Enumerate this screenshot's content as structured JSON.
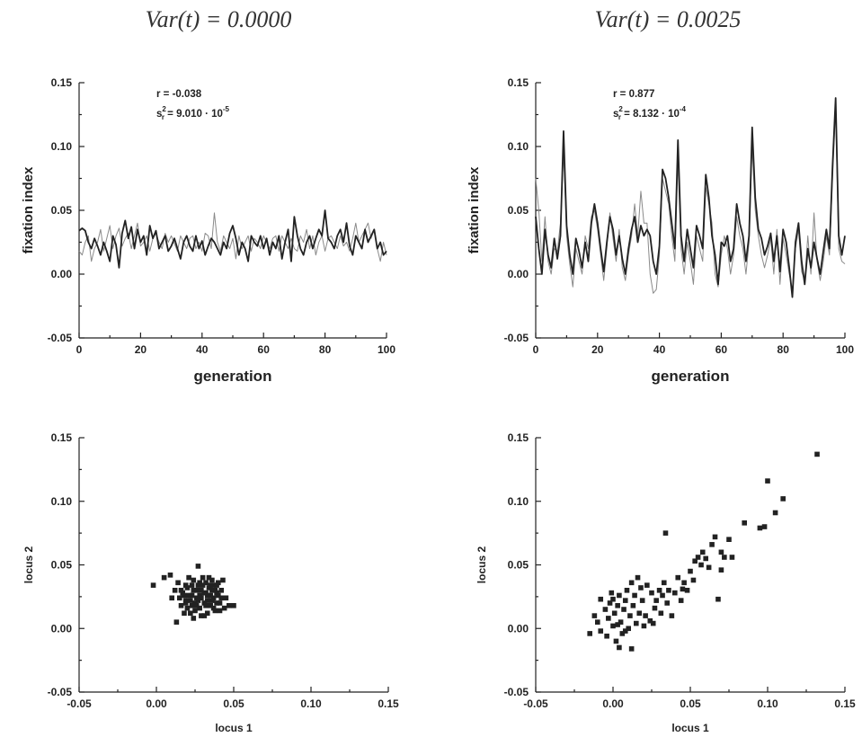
{
  "column_titles": [
    "Var(t) = 0.0000",
    "Var(t) = 0.0025"
  ],
  "chart_data": [
    {
      "type": "line",
      "xlabel": "generation",
      "ylabel": "fixation index",
      "xlim": [
        0,
        100
      ],
      "ylim": [
        -0.05,
        0.15
      ],
      "xticks": [
        0,
        20,
        40,
        60,
        80,
        100
      ],
      "yticks": [
        -0.05,
        0.0,
        0.05,
        0.1,
        0.15
      ],
      "ytick_labels": [
        "-0.05",
        "0.00",
        "0.05",
        "0.10",
        "0.15"
      ],
      "annotation": {
        "r_line": "r = -0.038",
        "s_prefix": "s",
        "s_sup": "2",
        "s_sub": "r",
        "s_value": "= 9.010 · 10",
        "s_exp": "-5"
      },
      "series": [
        {
          "color": "#222222",
          "values": [
            0.034,
            0.036,
            0.034,
            0.025,
            0.02,
            0.028,
            0.022,
            0.015,
            0.025,
            0.018,
            0.01,
            0.03,
            0.023,
            0.005,
            0.032,
            0.042,
            0.028,
            0.037,
            0.02,
            0.035,
            0.025,
            0.03,
            0.015,
            0.038,
            0.028,
            0.034,
            0.02,
            0.025,
            0.03,
            0.018,
            0.022,
            0.028,
            0.02,
            0.012,
            0.025,
            0.03,
            0.022,
            0.018,
            0.03,
            0.02,
            0.026,
            0.015,
            0.022,
            0.028,
            0.025,
            0.02,
            0.015,
            0.025,
            0.02,
            0.032,
            0.038,
            0.028,
            0.015,
            0.025,
            0.02,
            0.01,
            0.03,
            0.025,
            0.022,
            0.03,
            0.02,
            0.028,
            0.015,
            0.025,
            0.02,
            0.03,
            0.012,
            0.025,
            0.035,
            0.01,
            0.045,
            0.03,
            0.02,
            0.015,
            0.025,
            0.03,
            0.02,
            0.028,
            0.035,
            0.03,
            0.05,
            0.028,
            0.025,
            0.02,
            0.03,
            0.035,
            0.025,
            0.04,
            0.022,
            0.015,
            0.03,
            0.025,
            0.02,
            0.035,
            0.025,
            0.03,
            0.035,
            0.02,
            0.025,
            0.015,
            0.018
          ]
        },
        {
          "color": "#8a8a8a",
          "values": [
            0.018,
            0.015,
            0.025,
            0.03,
            0.01,
            0.02,
            0.025,
            0.035,
            0.018,
            0.028,
            0.038,
            0.02,
            0.03,
            0.036,
            0.022,
            0.028,
            0.032,
            0.02,
            0.03,
            0.04,
            0.022,
            0.025,
            0.03,
            0.018,
            0.028,
            0.032,
            0.025,
            0.02,
            0.032,
            0.025,
            0.03,
            0.024,
            0.018,
            0.03,
            0.025,
            0.02,
            0.028,
            0.03,
            0.02,
            0.025,
            0.018,
            0.032,
            0.03,
            0.02,
            0.048,
            0.025,
            0.018,
            0.03,
            0.025,
            0.02,
            0.028,
            0.012,
            0.03,
            0.02,
            0.025,
            0.03,
            0.018,
            0.028,
            0.025,
            0.02,
            0.03,
            0.025,
            0.02,
            0.028,
            0.03,
            0.018,
            0.03,
            0.025,
            0.02,
            0.028,
            0.02,
            0.018,
            0.03,
            0.025,
            0.035,
            0.02,
            0.03,
            0.015,
            0.025,
            0.03,
            0.018,
            0.028,
            0.03,
            0.025,
            0.02,
            0.03,
            0.022,
            0.025,
            0.018,
            0.028,
            0.04,
            0.025,
            0.03,
            0.035,
            0.04,
            0.028,
            0.035,
            0.02,
            0.01,
            0.025,
            0.015
          ]
        }
      ]
    },
    {
      "type": "line",
      "xlabel": "generation",
      "ylabel": "fixation index",
      "xlim": [
        0,
        100
      ],
      "ylim": [
        -0.05,
        0.15
      ],
      "xticks": [
        0,
        20,
        40,
        60,
        80,
        100
      ],
      "yticks": [
        -0.05,
        0.0,
        0.05,
        0.1,
        0.15
      ],
      "ytick_labels": [
        "-0.05",
        "0.00",
        "0.05",
        "0.10",
        "0.15"
      ],
      "annotation": {
        "r_line": "r =  0.877",
        "s_prefix": "s",
        "s_sup": "2",
        "s_sub": "r",
        "s_value": "= 8.132 · 10",
        "s_exp": "-4"
      },
      "series": [
        {
          "color": "#222222",
          "values": [
            0.045,
            0.02,
            0.0,
            0.035,
            0.015,
            0.005,
            0.028,
            0.012,
            0.03,
            0.112,
            0.038,
            0.015,
            0.0,
            0.028,
            0.018,
            0.005,
            0.025,
            0.01,
            0.04,
            0.055,
            0.04,
            0.02,
            0.002,
            0.025,
            0.045,
            0.035,
            0.015,
            0.03,
            0.012,
            0.0,
            0.02,
            0.035,
            0.045,
            0.025,
            0.038,
            0.03,
            0.035,
            0.03,
            0.01,
            0.0,
            0.022,
            0.082,
            0.075,
            0.06,
            0.04,
            0.02,
            0.105,
            0.03,
            0.01,
            0.035,
            0.02,
            0.005,
            0.038,
            0.03,
            0.02,
            0.078,
            0.06,
            0.03,
            0.015,
            -0.008,
            0.025,
            0.022,
            0.03,
            0.01,
            0.02,
            0.055,
            0.04,
            0.03,
            0.01,
            0.03,
            0.115,
            0.06,
            0.035,
            0.028,
            0.015,
            0.022,
            0.032,
            0.01,
            0.03,
            0.002,
            0.035,
            0.025,
            0.005,
            -0.018,
            0.025,
            0.04,
            0.01,
            -0.008,
            0.02,
            0.005,
            0.025,
            0.012,
            0.0,
            0.018,
            0.035,
            0.02,
            0.085,
            0.138,
            0.03,
            0.015,
            0.03
          ]
        },
        {
          "color": "#8a8a8a",
          "values": [
            0.075,
            0.05,
            0.01,
            0.045,
            0.01,
            0.0,
            0.02,
            0.018,
            0.04,
            0.095,
            0.03,
            0.008,
            -0.01,
            0.02,
            0.01,
            0.0,
            0.03,
            0.02,
            0.045,
            0.05,
            0.035,
            0.015,
            -0.005,
            0.02,
            0.048,
            0.028,
            0.01,
            0.035,
            0.005,
            -0.005,
            0.015,
            0.03,
            0.055,
            0.03,
            0.065,
            0.04,
            0.04,
            0.0,
            -0.015,
            -0.012,
            0.015,
            0.075,
            0.065,
            0.055,
            0.03,
            0.01,
            0.088,
            0.02,
            0.0,
            0.025,
            0.01,
            -0.008,
            0.03,
            0.02,
            0.01,
            0.068,
            0.055,
            0.04,
            0.0,
            -0.01,
            0.015,
            0.03,
            0.02,
            0.0,
            0.015,
            0.045,
            0.03,
            0.02,
            0.0,
            0.025,
            0.1,
            0.05,
            0.03,
            0.015,
            0.005,
            0.015,
            0.028,
            0.0,
            0.035,
            -0.008,
            0.028,
            0.015,
            0.0,
            -0.012,
            0.02,
            0.035,
            0.002,
            -0.005,
            0.03,
            0.0,
            0.048,
            0.01,
            -0.005,
            0.01,
            0.03,
            0.015,
            0.075,
            0.13,
            0.02,
            0.01,
            0.008
          ]
        }
      ]
    },
    {
      "type": "scatter",
      "xlabel": "locus 1",
      "ylabel": "locus 2",
      "xlim": [
        -0.05,
        0.15
      ],
      "ylim": [
        -0.05,
        0.15
      ],
      "xticks": [
        -0.05,
        0.0,
        0.05,
        0.1,
        0.15
      ],
      "xtick_labels": [
        "-0.05",
        "0.00",
        "0.05",
        "0.10",
        "0.15"
      ],
      "yticks": [
        -0.05,
        0.0,
        0.05,
        0.1,
        0.15
      ],
      "ytick_labels": [
        "-0.05",
        "0.00",
        "0.05",
        "0.10",
        "0.15"
      ],
      "points": [
        [
          -0.002,
          0.034
        ],
        [
          0.005,
          0.04
        ],
        [
          0.009,
          0.042
        ],
        [
          0.012,
          0.03
        ],
        [
          0.01,
          0.024
        ],
        [
          0.014,
          0.036
        ],
        [
          0.016,
          0.018
        ],
        [
          0.013,
          0.005
        ],
        [
          0.017,
          0.028
        ],
        [
          0.019,
          0.022
        ],
        [
          0.02,
          0.032
        ],
        [
          0.022,
          0.012
        ],
        [
          0.023,
          0.026
        ],
        [
          0.024,
          0.038
        ],
        [
          0.025,
          0.02
        ],
        [
          0.026,
          0.03
        ],
        [
          0.027,
          0.049
        ],
        [
          0.028,
          0.016
        ],
        [
          0.029,
          0.024
        ],
        [
          0.03,
          0.034
        ],
        [
          0.031,
          0.01
        ],
        [
          0.032,
          0.028
        ],
        [
          0.033,
          0.022
        ],
        [
          0.034,
          0.04
        ],
        [
          0.035,
          0.018
        ],
        [
          0.036,
          0.03
        ],
        [
          0.037,
          0.024
        ],
        [
          0.038,
          0.014
        ],
        [
          0.039,
          0.034
        ],
        [
          0.04,
          0.026
        ],
        [
          0.041,
          0.02
        ],
        [
          0.042,
          0.03
        ],
        [
          0.043,
          0.038
        ],
        [
          0.044,
          0.016
        ],
        [
          0.045,
          0.024
        ],
        [
          0.047,
          0.018
        ],
        [
          0.05,
          0.018
        ],
        [
          0.018,
          0.012
        ],
        [
          0.021,
          0.04
        ],
        [
          0.024,
          0.008
        ],
        [
          0.027,
          0.034
        ],
        [
          0.03,
          0.04
        ],
        [
          0.033,
          0.012
        ],
        [
          0.036,
          0.038
        ],
        [
          0.039,
          0.02
        ],
        [
          0.015,
          0.024
        ],
        [
          0.019,
          0.034
        ],
        [
          0.023,
          0.018
        ],
        [
          0.026,
          0.024
        ],
        [
          0.029,
          0.01
        ],
        [
          0.032,
          0.036
        ],
        [
          0.035,
          0.026
        ],
        [
          0.038,
          0.03
        ],
        [
          0.041,
          0.014
        ],
        [
          0.018,
          0.026
        ],
        [
          0.022,
          0.022
        ],
        [
          0.025,
          0.014
        ],
        [
          0.028,
          0.036
        ],
        [
          0.031,
          0.02
        ],
        [
          0.034,
          0.032
        ],
        [
          0.037,
          0.016
        ],
        [
          0.04,
          0.036
        ],
        [
          0.02,
          0.016
        ],
        [
          0.024,
          0.03
        ],
        [
          0.028,
          0.026
        ],
        [
          0.032,
          0.018
        ],
        [
          0.036,
          0.022
        ],
        [
          0.016,
          0.03
        ],
        [
          0.021,
          0.026
        ],
        [
          0.026,
          0.018
        ],
        [
          0.031,
          0.028
        ],
        [
          0.035,
          0.034
        ],
        [
          0.039,
          0.028
        ],
        [
          0.042,
          0.024
        ],
        [
          0.019,
          0.02
        ],
        [
          0.023,
          0.034
        ],
        [
          0.029,
          0.03
        ],
        [
          0.033,
          0.026
        ],
        [
          0.037,
          0.034
        ],
        [
          0.027,
          0.022
        ]
      ]
    },
    {
      "type": "scatter",
      "xlabel": "locus 1",
      "ylabel": "locus 2",
      "xlim": [
        -0.05,
        0.15
      ],
      "ylim": [
        -0.05,
        0.15
      ],
      "xticks": [
        -0.05,
        0.0,
        0.05,
        0.1,
        0.15
      ],
      "xtick_labels": [
        "-0.05",
        "0.00",
        "0.05",
        "0.10",
        "0.15"
      ],
      "yticks": [
        -0.05,
        0.0,
        0.05,
        0.1,
        0.15
      ],
      "ytick_labels": [
        "-0.05",
        "0.00",
        "0.05",
        "0.10",
        "0.15"
      ],
      "points": [
        [
          -0.015,
          -0.004
        ],
        [
          -0.012,
          0.01
        ],
        [
          -0.01,
          0.005
        ],
        [
          -0.008,
          -0.002
        ],
        [
          -0.005,
          0.015
        ],
        [
          -0.004,
          -0.006
        ],
        [
          -0.003,
          0.008
        ],
        [
          -0.002,
          0.02
        ],
        [
          -0.001,
          0.028
        ],
        [
          0.0,
          0.002
        ],
        [
          0.001,
          0.012
        ],
        [
          0.002,
          -0.01
        ],
        [
          0.003,
          0.018
        ],
        [
          0.004,
          0.026
        ],
        [
          0.005,
          0.005
        ],
        [
          0.006,
          -0.004
        ],
        [
          0.007,
          0.015
        ],
        [
          0.008,
          0.022
        ],
        [
          0.009,
          0.03
        ],
        [
          0.01,
          0.0
        ],
        [
          0.011,
          0.01
        ],
        [
          0.012,
          0.036
        ],
        [
          0.013,
          0.018
        ],
        [
          0.014,
          0.026
        ],
        [
          0.015,
          0.004
        ],
        [
          0.016,
          0.04
        ],
        [
          0.017,
          0.012
        ],
        [
          0.018,
          0.032
        ],
        [
          0.019,
          0.022
        ],
        [
          0.02,
          0.002
        ],
        [
          0.021,
          0.01
        ],
        [
          0.022,
          0.034
        ],
        [
          0.025,
          0.028
        ],
        [
          0.027,
          0.016
        ],
        [
          0.028,
          0.022
        ],
        [
          0.03,
          0.03
        ],
        [
          0.031,
          0.012
        ],
        [
          0.032,
          0.026
        ],
        [
          0.033,
          0.036
        ],
        [
          0.034,
          0.075
        ],
        [
          0.035,
          0.02
        ],
        [
          0.036,
          0.03
        ],
        [
          0.038,
          0.01
        ],
        [
          0.04,
          0.028
        ],
        [
          0.042,
          0.04
        ],
        [
          0.044,
          0.022
        ],
        [
          0.046,
          0.036
        ],
        [
          0.048,
          0.03
        ],
        [
          0.05,
          0.045
        ],
        [
          0.052,
          0.038
        ],
        [
          0.055,
          0.056
        ],
        [
          0.057,
          0.05
        ],
        [
          0.058,
          0.06
        ],
        [
          0.06,
          0.055
        ],
        [
          0.062,
          0.048
        ],
        [
          0.064,
          0.066
        ],
        [
          0.066,
          0.072
        ],
        [
          0.068,
          0.023
        ],
        [
          0.07,
          0.06
        ],
        [
          0.072,
          0.056
        ],
        [
          0.075,
          0.07
        ],
        [
          0.077,
          0.056
        ],
        [
          0.085,
          0.083
        ],
        [
          0.098,
          0.08
        ],
        [
          0.1,
          0.116
        ],
        [
          0.105,
          0.091
        ],
        [
          0.11,
          0.102
        ],
        [
          0.132,
          0.137
        ],
        [
          -0.008,
          0.023
        ],
        [
          0.0,
          0.023
        ],
        [
          0.003,
          0.003
        ],
        [
          0.008,
          -0.002
        ],
        [
          0.012,
          -0.016
        ],
        [
          0.004,
          -0.015
        ],
        [
          0.024,
          0.006
        ],
        [
          0.026,
          0.004
        ],
        [
          0.045,
          0.031
        ],
        [
          0.053,
          0.053
        ],
        [
          0.07,
          0.046
        ],
        [
          0.095,
          0.079
        ]
      ]
    }
  ]
}
